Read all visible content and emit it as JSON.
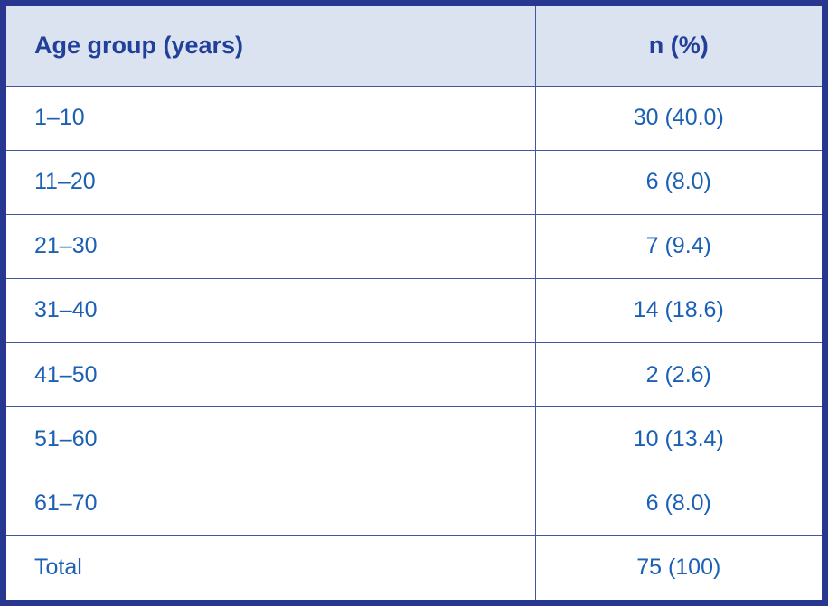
{
  "table": {
    "headers": {
      "age_group": "Age group (years)",
      "n_pct": "n (%)"
    },
    "rows": [
      {
        "age_group": "1–10",
        "n_pct": "30 (40.0)"
      },
      {
        "age_group": "11–20",
        "n_pct": "6 (8.0)"
      },
      {
        "age_group": "21–30",
        "n_pct": "7 (9.4)"
      },
      {
        "age_group": "31–40",
        "n_pct": "14 (18.6)"
      },
      {
        "age_group": "41–50",
        "n_pct": "2 (2.6)"
      },
      {
        "age_group": "51–60",
        "n_pct": "10 (13.4)"
      },
      {
        "age_group": "61–70",
        "n_pct": "6 (8.0)"
      },
      {
        "age_group": "Total",
        "n_pct": "75 (100)"
      }
    ]
  },
  "colors": {
    "frame_border": "#283891",
    "grid_line": "#44559f",
    "header_bg": "#dbe2f0",
    "header_text": "#21409a",
    "cell_text": "#1b60b5"
  }
}
